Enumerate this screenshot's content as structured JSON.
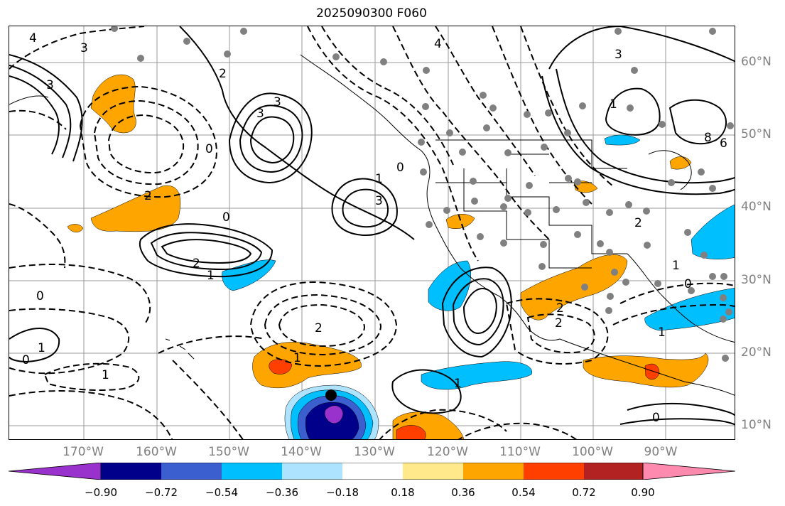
{
  "title": "2025090300 F060",
  "lat_labels": [
    "60°N",
    "50°N",
    "40°N",
    "30°N",
    "20°N",
    "10°N"
  ],
  "lon_labels": [
    "170°W",
    "160°W",
    "150°W",
    "140°W",
    "130°W",
    "120°W",
    "110°W",
    "100°W",
    "90°W"
  ],
  "colorbar": {
    "ticks": [
      "−0.90",
      "−0.72",
      "−0.54",
      "−0.36",
      "−0.18",
      "0.18",
      "0.36",
      "0.54",
      "0.72",
      "0.90"
    ],
    "colors": [
      "#9932cc",
      "#00008b",
      "#3b5fcf",
      "#00bfff",
      "#aee3ff",
      "#ffffff",
      "#ffe98a",
      "#ffa500",
      "#ff3f00",
      "#b22222",
      "#ff8ab0"
    ]
  },
  "contour_labels": [
    "4",
    "3",
    "3",
    "2",
    "3",
    "3",
    "1",
    "0",
    "0",
    "2",
    "2",
    "0",
    "1",
    "1",
    "0",
    "1",
    "0",
    "2",
    "1",
    "3",
    "2",
    "2",
    "3",
    "8",
    "6",
    "1",
    "1",
    "2",
    "1",
    "1",
    "0",
    "0",
    "4"
  ],
  "map_elements": {
    "shading": "filled anomaly shading",
    "contours": "solid and dashed contours",
    "markers": "station dots"
  }
}
